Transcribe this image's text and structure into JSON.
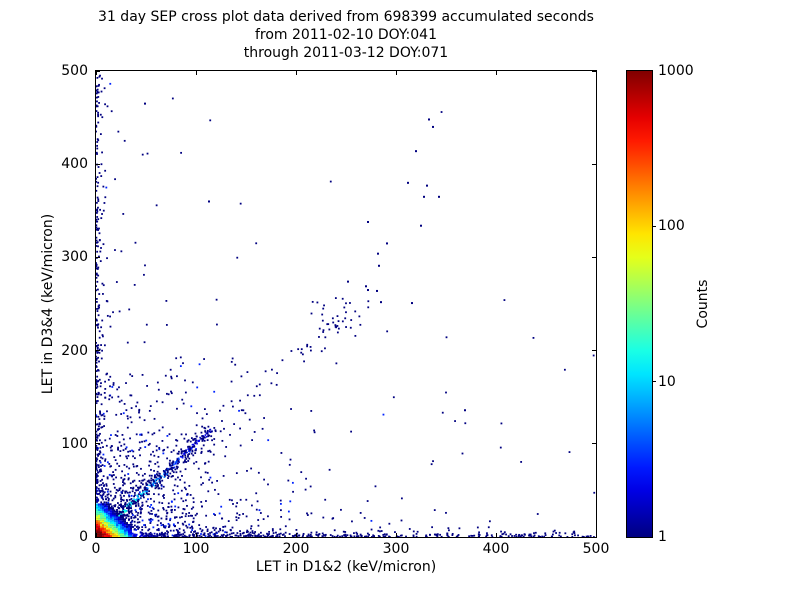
{
  "figure": {
    "title_lines": [
      "31 day SEP cross plot data derived from 698399 accumulated seconds",
      "from 2011-02-10 DOY:041",
      "through 2011-03-12 DOY:071"
    ]
  },
  "chart_data": {
    "type": "scatter",
    "title": "31 day SEP cross plot data derived from 698399 accumulated seconds from 2011-02-10 DOY:041 through 2011-03-12 DOY:071",
    "xlabel": "LET in D1&2 (keV/micron)",
    "ylabel": "LET in D3&4 (keV/micron)",
    "xlim": [
      0,
      500
    ],
    "ylim": [
      0,
      500
    ],
    "xticks": [
      0,
      100,
      200,
      300,
      400,
      500
    ],
    "yticks": [
      0,
      100,
      200,
      300,
      400,
      500
    ],
    "grid": false,
    "legend": null,
    "marker_size_px": 1.8,
    "colorbar": {
      "label": "Counts",
      "scale": "log",
      "min": 1,
      "max": 1000,
      "ticks": [
        1,
        10,
        100,
        1000
      ],
      "tick_labels": [
        "1",
        "10",
        "100",
        "1000"
      ],
      "colormap": "jet",
      "color_low": "#000080",
      "color_high": "#800000"
    },
    "distribution": {
      "seed": 42,
      "origin_hotspot": {
        "center": [
          0,
          0
        ],
        "extent": 36,
        "cell": 2,
        "peak_count": 1000,
        "decay": 5.5
      },
      "diagonal_band": {
        "slope": 1,
        "from": 0,
        "to": 115,
        "step": 0.55,
        "sigma": 1.3,
        "peak_count": 35,
        "decay": 30,
        "halo_points": 260,
        "halo_sigma": 5,
        "sparse_to": 265,
        "sparse_points": 45,
        "sparse_sigma": 8
      },
      "bottom_band": {
        "points": 520,
        "x_power": 1.7,
        "y_decay": 2.4,
        "count_amp": 12,
        "count_decay": 18
      },
      "left_band": {
        "points": 360,
        "y_power": 1.9,
        "x_decay": 2.4,
        "count_amp": 8,
        "count_decay": 15
      },
      "near_field": {
        "points": 950,
        "x_decay": 55,
        "y_decay": 55
      },
      "far_field": {
        "points": 120,
        "edge_decay": 75
      },
      "mid_cluster": {
        "center": [
          238,
          228
        ],
        "sigma": [
          14,
          13
        ],
        "points": 30
      },
      "outliers": [
        [
          49,
          465
        ],
        [
          333,
          448
        ],
        [
          337,
          440
        ],
        [
          320,
          414
        ],
        [
          312,
          380
        ],
        [
          331,
          377
        ],
        [
          328,
          365
        ],
        [
          343,
          365
        ],
        [
          272,
          338
        ],
        [
          325,
          334
        ],
        [
          291,
          315
        ],
        [
          282,
          304
        ],
        [
          283,
          291
        ],
        [
          252,
          274
        ],
        [
          270,
          269
        ],
        [
          272,
          265
        ],
        [
          281,
          264
        ],
        [
          285,
          252
        ],
        [
          316,
          251
        ],
        [
          113,
          360
        ],
        [
          369,
          136
        ]
      ]
    }
  }
}
